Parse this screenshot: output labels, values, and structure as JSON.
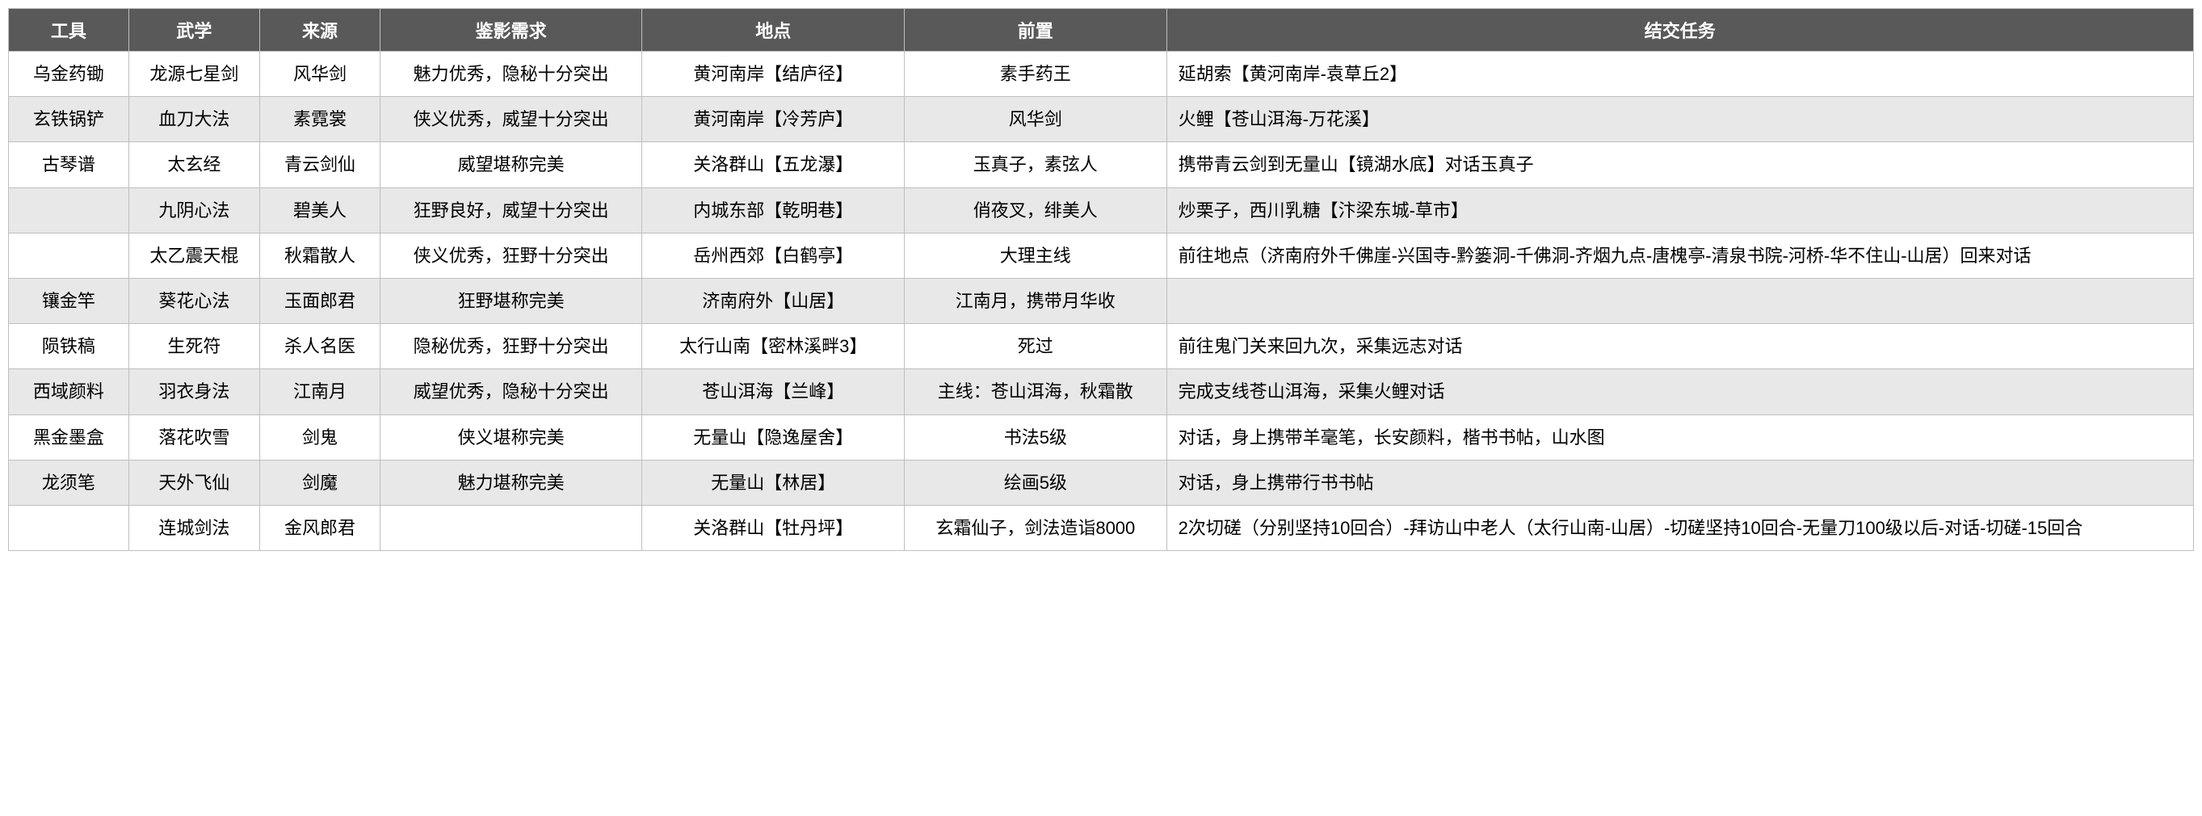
{
  "columns": [
    "工具",
    "武学",
    "来源",
    "鉴影需求",
    "地点",
    "前置",
    "结交任务"
  ],
  "rows": [
    {
      "alt": false,
      "cells": [
        "乌金药锄",
        "龙源七星剑",
        "风华剑",
        "魅力优秀，隐秘十分突出",
        "黄河南岸【结庐径】",
        "素手药王",
        "延胡索【黄河南岸-袁草丘2】"
      ]
    },
    {
      "alt": true,
      "cells": [
        "玄铁锅铲",
        "血刀大法",
        "素霓裳",
        "侠义优秀，威望十分突出",
        "黄河南岸【冷芳庐】",
        "风华剑",
        "火鲤【苍山洱海-万花溪】"
      ]
    },
    {
      "alt": false,
      "cells": [
        "古琴谱",
        "太玄经",
        "青云剑仙",
        "威望堪称完美",
        "关洛群山【五龙瀑】",
        "玉真子，素弦人",
        "携带青云剑到无量山【镜湖水底】对话玉真子"
      ]
    },
    {
      "alt": true,
      "cells": [
        "",
        "九阴心法",
        "碧美人",
        "狂野良好，威望十分突出",
        "内城东部【乾明巷】",
        "俏夜叉，绯美人",
        "炒栗子，西川乳糖【汴梁东城-草市】"
      ]
    },
    {
      "alt": false,
      "cells": [
        "",
        "太乙震天棍",
        "秋霜散人",
        "侠义优秀，狂野十分突出",
        "岳州西郊【白鹤亭】",
        "大理主线",
        "前往地点（济南府外千佛崖-兴国寺-黔篓洞-千佛洞-齐烟九点-唐槐亭-清泉书院-河桥-华不住山-山居）回来对话"
      ]
    },
    {
      "alt": true,
      "cells": [
        "镶金竿",
        "葵花心法",
        "玉面郎君",
        "狂野堪称完美",
        "济南府外【山居】",
        "江南月，携带月华收",
        ""
      ]
    },
    {
      "alt": false,
      "cells": [
        "陨铁稿",
        "生死符",
        "杀人名医",
        "隐秘优秀，狂野十分突出",
        "太行山南【密林溪畔3】",
        "死过",
        "前往鬼门关来回九次，采集远志对话"
      ]
    },
    {
      "alt": true,
      "cells": [
        "西域颜料",
        "羽衣身法",
        "江南月",
        "威望优秀，隐秘十分突出",
        "苍山洱海【兰峰】",
        "主线：苍山洱海，秋霜散",
        "完成支线苍山洱海，采集火鲤对话"
      ]
    },
    {
      "alt": false,
      "cells": [
        "黑金墨盒",
        "落花吹雪",
        "剑鬼",
        "侠义堪称完美",
        "无量山【隐逸屋舍】",
        "书法5级",
        "对话，身上携带羊毫笔，长安颜料，楷书书帖，山水图"
      ]
    },
    {
      "alt": true,
      "cells": [
        "龙须笔",
        "天外飞仙",
        "剑魔",
        "魅力堪称完美",
        "无量山【林居】",
        "绘画5级",
        "对话，身上携带行书书帖"
      ]
    },
    {
      "alt": false,
      "cells": [
        "",
        "连城剑法",
        "金风郎君",
        "",
        "关洛群山【牡丹坪】",
        "玄霜仙子，剑法造诣8000",
        "2次切磋（分别坚持10回合）-拜访山中老人（太行山南-山居）-切磋坚持10回合-无量刀100级以后-对话-切磋-15回合"
      ]
    }
  ],
  "header_bg": "#595959",
  "header_fg": "#ffffff",
  "alt_bg": "#e8e8e8",
  "border_color": "#bfbfbf",
  "font_size": 22
}
